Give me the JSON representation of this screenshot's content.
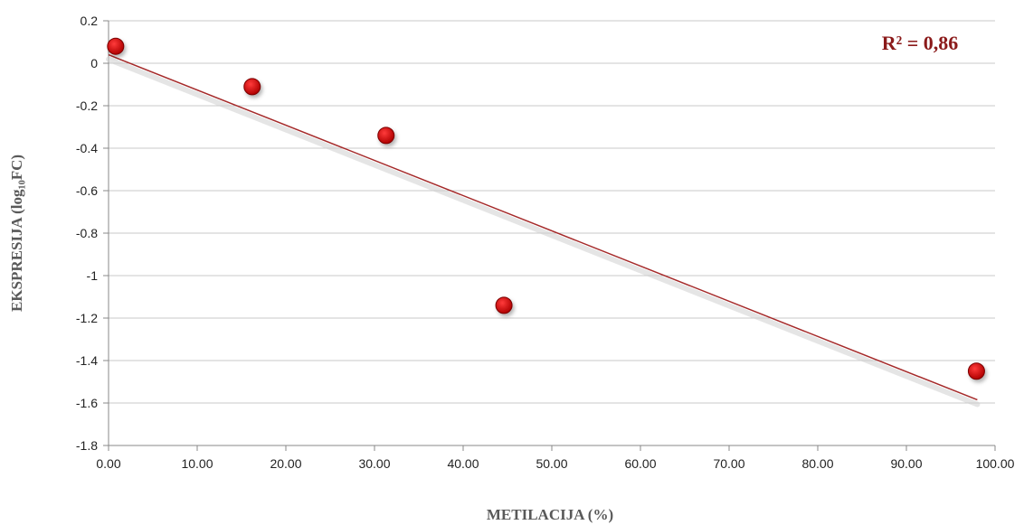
{
  "chart_data": {
    "type": "scatter",
    "xlabel": "METILACIJA (%)",
    "ylabel": "EKSPRESIJA  (log₁₀FC)",
    "xlim": [
      0,
      100
    ],
    "ylim": [
      -1.8,
      0.2
    ],
    "x_ticks": [
      "0.00",
      "10.00",
      "20.00",
      "30.00",
      "40.00",
      "50.00",
      "60.00",
      "70.00",
      "80.00",
      "90.00",
      "100.00"
    ],
    "y_ticks": [
      "0.2",
      "0",
      "-0.2",
      "-0.4",
      "-0.6",
      "-0.8",
      "-1",
      "-1.2",
      "-1.4",
      "-1.6",
      "-1.8"
    ],
    "grid": "horizontal",
    "points": [
      {
        "x": 0.8,
        "y": 0.08
      },
      {
        "x": 16.2,
        "y": -0.11
      },
      {
        "x": 31.3,
        "y": -0.34
      },
      {
        "x": 44.6,
        "y": -1.14
      },
      {
        "x": 97.9,
        "y": -1.45
      }
    ],
    "trendline": {
      "x0": 0,
      "y0": 0.04,
      "x1": 98,
      "y1": -1.585
    },
    "annotation": "R² = 0,86",
    "colors": {
      "point": "#c00000",
      "point_edge": "#7a0000",
      "trendline": "#a52a2a",
      "annotation": "#8b1a1a",
      "grid": "#c8c8c8"
    }
  }
}
